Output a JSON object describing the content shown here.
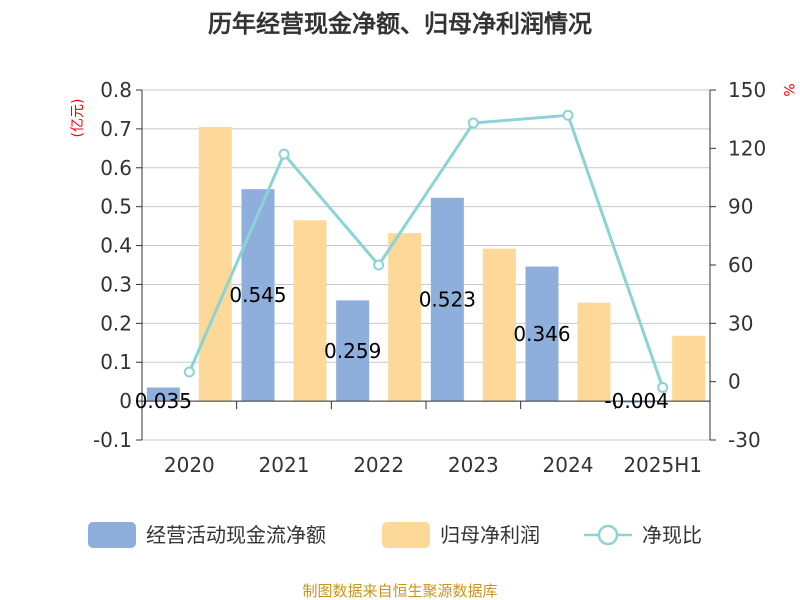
{
  "chart_data": {
    "type": "bar",
    "title": "历年经营现金净额、归母净利润情况",
    "categories": [
      "2020",
      "2021",
      "2022",
      "2023",
      "2024",
      "2025H1"
    ],
    "y_left": {
      "unit": "(亿元)",
      "ylim": [
        -0.1,
        0.8
      ],
      "ticks": [
        "0.8",
        "0.7",
        "0.6",
        "0.5",
        "0.4",
        "0.3",
        "0.2",
        "0.1",
        "0",
        "-0.1"
      ]
    },
    "y_right": {
      "unit": "%",
      "ylim": [
        -30,
        150
      ],
      "ticks": [
        "150",
        "120",
        "90",
        "60",
        "30",
        "0",
        "-30"
      ]
    },
    "grid": true,
    "legend_position": "bottom",
    "series": [
      {
        "name": "经营活动现金流净额",
        "type": "bar",
        "axis": "left",
        "color": "#8eaedb",
        "values": [
          0.035,
          0.545,
          0.259,
          0.523,
          0.346,
          -0.004
        ],
        "labels": [
          "0.035",
          "0.545",
          "0.259",
          "0.523",
          "0.346",
          "-0.004"
        ]
      },
      {
        "name": "归母净利润",
        "type": "bar",
        "axis": "left",
        "color": "#fdd999",
        "values": [
          0.705,
          0.465,
          0.432,
          0.392,
          0.253,
          0.168
        ]
      },
      {
        "name": "净现比",
        "type": "line",
        "axis": "right",
        "color": "#8bd3d6",
        "values": [
          5,
          117,
          60,
          133,
          137,
          -3
        ]
      }
    ],
    "source": "制图数据来自恒生聚源数据库"
  }
}
